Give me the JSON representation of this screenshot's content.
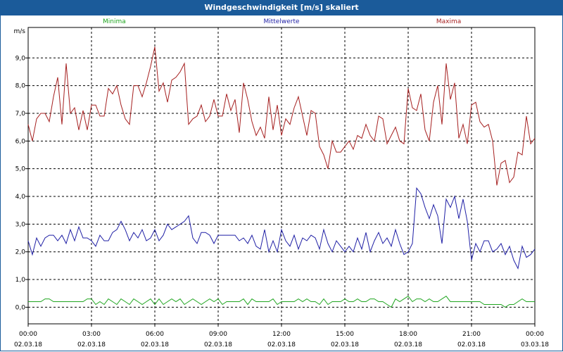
{
  "window": {
    "title": "Windgeschwindigkeit [m/s] skaliert"
  },
  "chart_data": {
    "type": "line",
    "title": "Windgeschwindigkeit [m/s] skaliert",
    "ylabel": "m/s",
    "ylim": [
      -0.6,
      10.1
    ],
    "xlim": [
      0,
      24
    ],
    "yticks": [
      "0,0",
      "1,0",
      "2,0",
      "3,0",
      "4,0",
      "5,0",
      "6,0",
      "7,0",
      "8,0",
      "9,0"
    ],
    "ytick_values": [
      0,
      1,
      2,
      3,
      4,
      5,
      6,
      7,
      8,
      9
    ],
    "xticks": [
      {
        "time": "00:00",
        "date": "02.03.18"
      },
      {
        "time": "03:00",
        "date": "02.03.18"
      },
      {
        "time": "06:00",
        "date": "02.03.18"
      },
      {
        "time": "09:00",
        "date": "02.03.18"
      },
      {
        "time": "12:00",
        "date": "02.03.18"
      },
      {
        "time": "15:00",
        "date": "02.03.18"
      },
      {
        "time": "18:00",
        "date": "02.03.18"
      },
      {
        "time": "21:00",
        "date": "02.03.18"
      },
      {
        "time": "00:00",
        "date": "03.03.18"
      }
    ],
    "grid": true,
    "x": [
      0.0,
      0.2,
      0.4,
      0.6,
      0.8,
      1.0,
      1.2,
      1.4,
      1.6,
      1.8,
      2.0,
      2.2,
      2.4,
      2.6,
      2.8,
      3.0,
      3.2,
      3.4,
      3.6,
      3.8,
      4.0,
      4.2,
      4.4,
      4.6,
      4.8,
      5.0,
      5.2,
      5.4,
      5.6,
      5.8,
      6.0,
      6.2,
      6.4,
      6.6,
      6.8,
      7.0,
      7.2,
      7.4,
      7.6,
      7.8,
      8.0,
      8.2,
      8.4,
      8.6,
      8.8,
      9.0,
      9.2,
      9.4,
      9.6,
      9.8,
      10.0,
      10.2,
      10.4,
      10.6,
      10.8,
      11.0,
      11.2,
      11.4,
      11.6,
      11.8,
      12.0,
      12.2,
      12.4,
      12.6,
      12.8,
      13.0,
      13.2,
      13.4,
      13.6,
      13.8,
      14.0,
      14.2,
      14.4,
      14.6,
      14.8,
      15.0,
      15.2,
      15.4,
      15.6,
      15.8,
      16.0,
      16.2,
      16.4,
      16.6,
      16.8,
      17.0,
      17.2,
      17.4,
      17.6,
      17.8,
      18.0,
      18.2,
      18.4,
      18.6,
      18.8,
      19.0,
      19.2,
      19.4,
      19.6,
      19.8,
      20.0,
      20.2,
      20.4,
      20.6,
      20.8,
      21.0,
      21.2,
      21.4,
      21.6,
      21.8,
      22.0,
      22.2,
      22.4,
      22.6,
      22.8,
      23.0,
      23.2,
      23.4,
      23.6,
      23.8,
      24.0
    ],
    "series": [
      {
        "name": "Minima",
        "color": "#1fa51f",
        "values": [
          0.2,
          0.2,
          0.2,
          0.2,
          0.3,
          0.3,
          0.2,
          0.2,
          0.2,
          0.2,
          0.2,
          0.2,
          0.2,
          0.2,
          0.3,
          0.3,
          0.1,
          0.2,
          0.1,
          0.3,
          0.2,
          0.1,
          0.3,
          0.2,
          0.1,
          0.3,
          0.2,
          0.1,
          0.2,
          0.3,
          0.1,
          0.3,
          0.1,
          0.2,
          0.3,
          0.2,
          0.3,
          0.1,
          0.2,
          0.3,
          0.2,
          0.1,
          0.2,
          0.3,
          0.2,
          0.3,
          0.1,
          0.2,
          0.2,
          0.2,
          0.2,
          0.3,
          0.1,
          0.3,
          0.2,
          0.2,
          0.2,
          0.2,
          0.3,
          0.1,
          0.2,
          0.2,
          0.2,
          0.2,
          0.3,
          0.2,
          0.3,
          0.2,
          0.2,
          0.1,
          0.3,
          0.1,
          0.2,
          0.2,
          0.2,
          0.3,
          0.2,
          0.2,
          0.3,
          0.2,
          0.2,
          0.3,
          0.3,
          0.2,
          0.2,
          0.1,
          0.0,
          0.3,
          0.2,
          0.3,
          0.4,
          0.2,
          0.3,
          0.3,
          0.2,
          0.3,
          0.2,
          0.2,
          0.3,
          0.4,
          0.2,
          0.2,
          0.2,
          0.2,
          0.2,
          0.2,
          0.2,
          0.2,
          0.1,
          0.1,
          0.1,
          0.1,
          0.1,
          0.0,
          0.1,
          0.1,
          0.2,
          0.3,
          0.2,
          0.2,
          0.2
        ]
      },
      {
        "name": "Mittelwerte",
        "color": "#1f1fa5",
        "values": [
          2.4,
          1.9,
          2.5,
          2.2,
          2.5,
          2.6,
          2.6,
          2.4,
          2.6,
          2.3,
          2.8,
          2.4,
          2.9,
          2.5,
          2.5,
          2.4,
          2.2,
          2.6,
          2.4,
          2.4,
          2.7,
          2.8,
          3.1,
          2.8,
          2.4,
          2.7,
          2.5,
          2.8,
          2.4,
          2.5,
          2.8,
          2.4,
          2.6,
          3.0,
          2.8,
          2.9,
          3.0,
          3.1,
          3.3,
          2.5,
          2.3,
          2.7,
          2.7,
          2.6,
          2.3,
          2.6,
          2.6,
          2.6,
          2.6,
          2.6,
          2.4,
          2.5,
          2.3,
          2.6,
          2.2,
          2.1,
          2.8,
          2.0,
          2.4,
          2.0,
          2.8,
          2.4,
          2.2,
          2.6,
          2.1,
          2.5,
          2.4,
          2.6,
          2.5,
          2.1,
          2.8,
          2.3,
          2.0,
          2.4,
          2.2,
          2.0,
          2.2,
          2.0,
          2.5,
          2.1,
          2.7,
          2.0,
          2.4,
          2.7,
          2.3,
          2.5,
          2.2,
          2.8,
          2.3,
          1.9,
          2.0,
          2.3,
          4.3,
          4.1,
          3.6,
          3.2,
          3.7,
          3.3,
          2.3,
          3.9,
          3.6,
          4.0,
          3.2,
          3.9,
          3.1,
          1.7,
          2.3,
          2.0,
          2.4,
          2.4,
          2.0,
          2.1,
          2.3,
          1.9,
          2.2,
          1.7,
          1.4,
          2.2,
          1.8,
          1.9,
          2.1
        ]
      },
      {
        "name": "Maxima",
        "color": "#a51f1f",
        "values": [
          6.6,
          6.0,
          6.8,
          7.0,
          7.0,
          6.7,
          7.6,
          8.3,
          6.6,
          8.8,
          7.0,
          7.2,
          6.4,
          7.1,
          6.4,
          7.3,
          7.3,
          6.9,
          6.9,
          7.9,
          7.7,
          8.0,
          7.3,
          6.8,
          6.6,
          8.0,
          8.0,
          7.6,
          8.1,
          8.7,
          9.4,
          7.8,
          8.1,
          7.4,
          8.2,
          8.3,
          8.5,
          8.8,
          6.6,
          6.8,
          6.9,
          7.3,
          6.7,
          6.9,
          7.5,
          6.9,
          6.9,
          7.7,
          7.1,
          7.5,
          6.3,
          8.1,
          7.5,
          6.7,
          6.2,
          6.5,
          6.1,
          7.6,
          6.4,
          7.3,
          6.2,
          6.8,
          6.6,
          7.2,
          7.6,
          6.9,
          6.2,
          7.1,
          7.0,
          5.8,
          5.5,
          5.0,
          6.0,
          5.6,
          5.6,
          5.8,
          6.0,
          5.7,
          6.2,
          6.1,
          6.6,
          6.2,
          6.0,
          6.9,
          6.8,
          5.9,
          6.2,
          6.5,
          6.0,
          5.9,
          7.9,
          7.2,
          7.1,
          7.7,
          6.4,
          6.0,
          7.4,
          8.0,
          6.6,
          8.8,
          7.5,
          8.1,
          6.1,
          6.6,
          5.9,
          7.3,
          7.4,
          6.7,
          6.5,
          6.6,
          6.0,
          4.4,
          5.2,
          5.3,
          4.5,
          4.7,
          5.6,
          5.5,
          6.9,
          5.9,
          6.1
        ]
      }
    ]
  }
}
